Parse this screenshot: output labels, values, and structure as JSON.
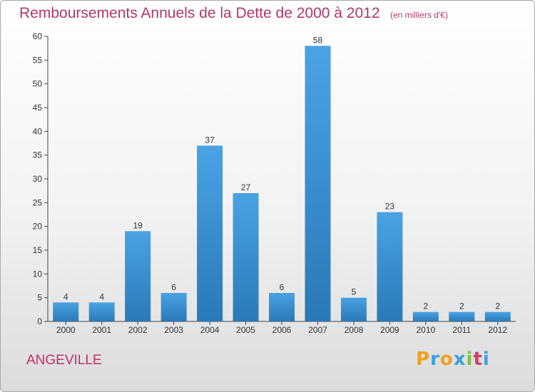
{
  "chart_data": {
    "type": "bar",
    "title": "Remboursements Annuels de la Dette de 2000 à 2012",
    "unit_note": "(en milliers d'€)",
    "xlabel": "",
    "ylabel": "",
    "categories": [
      "2000",
      "2001",
      "2002",
      "2003",
      "2004",
      "2005",
      "2006",
      "2007",
      "2008",
      "2009",
      "2010",
      "2011",
      "2012"
    ],
    "values": [
      4,
      4,
      19,
      6,
      37,
      27,
      6,
      58,
      5,
      23,
      2,
      2,
      2
    ],
    "ylim": [
      0,
      60
    ],
    "yticks": [
      0,
      5,
      10,
      15,
      20,
      25,
      30,
      35,
      40,
      45,
      50,
      55,
      60
    ],
    "grid": false,
    "data_labels": true,
    "bar_color": "#4aa3e3",
    "bar_color_dark": "#2a79b8"
  },
  "footer": {
    "location": "ANGEVILLE",
    "brand": [
      "P",
      "r",
      "o",
      "x",
      "i",
      "t",
      "i"
    ],
    "brand_colors": [
      "#f0a020",
      "#3aa0dd",
      "#f0a020",
      "#3aa0dd",
      "#7cc242",
      "#d83a6a",
      "#3aa0dd"
    ]
  },
  "colors": {
    "title": "#b0386a",
    "axis": "#444444",
    "tick_text": "#333333"
  }
}
